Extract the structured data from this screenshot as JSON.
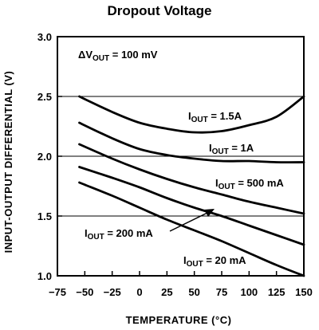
{
  "chart_data": {
    "type": "line",
    "title": "Dropout Voltage",
    "xlabel": "TEMPERATURE (°C)",
    "ylabel": "INPUT-OUTPUT DIFFERENTIAL (V)",
    "xlim": [
      -75,
      150
    ],
    "ylim": [
      1.0,
      3.0
    ],
    "xticks": [
      -75,
      -50,
      -25,
      0,
      25,
      50,
      75,
      100,
      125,
      150
    ],
    "yticks": [
      1.0,
      1.5,
      2.0,
      2.5,
      3.0
    ],
    "xtick_labels": [
      "−75",
      "−50",
      "−25",
      "0",
      "25",
      "50",
      "75",
      "100",
      "125",
      "150"
    ],
    "ytick_labels": [
      "1.0",
      "1.5",
      "2.0",
      "2.5",
      "3.0"
    ],
    "grid": {
      "horizontal": true,
      "vertical": false
    },
    "condition": {
      "prefix": "ΔV",
      "sub": "OUT",
      "suffix": " = 100 mV"
    },
    "series": [
      {
        "name": "1.5A",
        "label": {
          "prefix": "I",
          "sub": "OUT",
          "suffix": " = 1.5A"
        },
        "x": [
          -55,
          -25,
          0,
          25,
          50,
          75,
          100,
          125,
          150
        ],
        "y": [
          2.5,
          2.37,
          2.28,
          2.23,
          2.2,
          2.21,
          2.26,
          2.33,
          2.5
        ]
      },
      {
        "name": "1A",
        "label": {
          "prefix": "I",
          "sub": "OUT",
          "suffix": " = 1A"
        },
        "x": [
          -55,
          -25,
          0,
          25,
          50,
          75,
          100,
          125,
          150
        ],
        "y": [
          2.28,
          2.15,
          2.06,
          2.01,
          1.98,
          1.96,
          1.96,
          1.95,
          1.95
        ]
      },
      {
        "name": "500 mA",
        "label": {
          "prefix": "I",
          "sub": "OUT",
          "suffix": " = 500 mA"
        },
        "x": [
          -55,
          -25,
          0,
          25,
          50,
          75,
          100,
          125,
          150
        ],
        "y": [
          2.1,
          1.98,
          1.89,
          1.81,
          1.74,
          1.68,
          1.62,
          1.57,
          1.52
        ]
      },
      {
        "name": "200 mA",
        "label": {
          "prefix": "I",
          "sub": "OUT",
          "suffix": " = 200 mA"
        },
        "x": [
          -55,
          -25,
          0,
          25,
          50,
          75,
          100,
          125,
          150
        ],
        "y": [
          1.91,
          1.82,
          1.74,
          1.65,
          1.57,
          1.5,
          1.42,
          1.34,
          1.26
        ]
      },
      {
        "name": "20 mA",
        "label": {
          "prefix": "I",
          "sub": "OUT",
          "suffix": " = 20 mA"
        },
        "x": [
          -55,
          -25,
          0,
          25,
          50,
          75,
          100,
          125,
          150
        ],
        "y": [
          1.78,
          1.67,
          1.57,
          1.47,
          1.38,
          1.29,
          1.19,
          1.09,
          1.0
        ]
      }
    ]
  }
}
